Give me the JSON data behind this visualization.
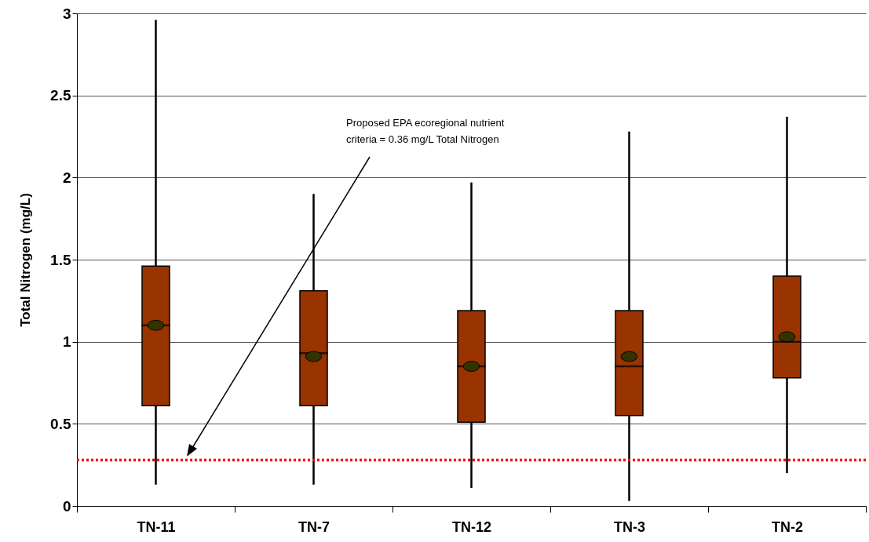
{
  "chart_data": {
    "type": "box",
    "ylabel": "Total Nitrogen (mg/L)",
    "categories": [
      "TN-11",
      "TN-7",
      "TN-12",
      "TN-3",
      "TN-2"
    ],
    "series": [
      {
        "color": "#993300",
        "boxes": [
          {
            "low": 0.13,
            "q1": 0.61,
            "median": 1.1,
            "q3": 1.46,
            "high": 2.96,
            "mean": 1.1
          },
          {
            "low": 0.13,
            "q1": 0.61,
            "median": 0.93,
            "q3": 1.31,
            "high": 1.9,
            "mean": 0.91
          },
          {
            "low": 0.11,
            "q1": 0.51,
            "median": 0.85,
            "q3": 1.19,
            "high": 1.97,
            "mean": 0.85
          },
          {
            "low": 0.03,
            "q1": 0.55,
            "median": 0.85,
            "q3": 1.19,
            "high": 2.28,
            "mean": 0.91
          },
          {
            "low": 0.2,
            "q1": 0.78,
            "median": 1.0,
            "q3": 1.4,
            "high": 2.37,
            "mean": 1.03
          }
        ]
      }
    ],
    "ylim": [
      0,
      3
    ],
    "yticks": [
      0,
      0.5,
      1,
      1.5,
      2,
      2.5,
      3
    ],
    "grid": "y",
    "ref_lines": [
      {
        "axis": "y",
        "value": 0.28,
        "color": "#ff0000",
        "line_style": "dotted"
      }
    ],
    "annotations": [
      "Proposed EPA ecoregional nutrient criteria = 0.36 mg/L Total Nitrogen"
    ]
  }
}
